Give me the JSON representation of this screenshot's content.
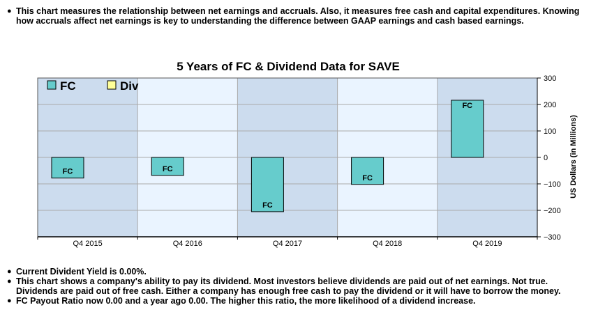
{
  "intro_text": "This chart measures the relationship between net earnings and accruals. Also, it measures free cash and capital expenditures. Knowing how accruals affect net earnings is key to understanding the difference between GAAP earnings and cash based earnings.",
  "bullet_glyph": "●",
  "notes": [
    "Current Divident Yield is 0.00%.",
    "This chart shows a company's ability to pay its dividend. Most investors believe dividends are paid out of net earnings. Not true. Dividends are paid out of free cash. Either a company has enough free cash to pay the dividend or it will have to borrow the money.",
    "FC Payout Ratio now 0.00 and a year ago 0.00. The higher this ratio, the more likelihood of a dividend increase."
  ],
  "colors": {
    "fc_bar": "#66cccc",
    "div_bar": "#ffff99",
    "band_dark": "#ccdcee",
    "band_light": "#eaf4ff",
    "grid": "#aaaaaa"
  },
  "chart_data": {
    "type": "bar",
    "title": "5 Years of FC & Dividend Data for SAVE",
    "ylabel": "US Dollars (in Millions)",
    "xlabel": "",
    "categories": [
      "Q4 2015",
      "Q4 2016",
      "Q4 2017",
      "Q4 2018",
      "Q4 2019"
    ],
    "series": [
      {
        "name": "FC",
        "bar_label": "FC",
        "values": [
          -78,
          -68,
          -205,
          -102,
          216
        ]
      },
      {
        "name": "Div",
        "values": [
          0,
          0,
          0,
          0,
          0
        ]
      }
    ],
    "ylim": [
      -300,
      300
    ],
    "yticks": [
      -300,
      -200,
      -100,
      0,
      100,
      200,
      300
    ],
    "ytick_labels": [
      "−300",
      "−200",
      "−100",
      "0",
      "100",
      "200",
      "300"
    ],
    "grid": true,
    "legend_position": "top-left"
  }
}
